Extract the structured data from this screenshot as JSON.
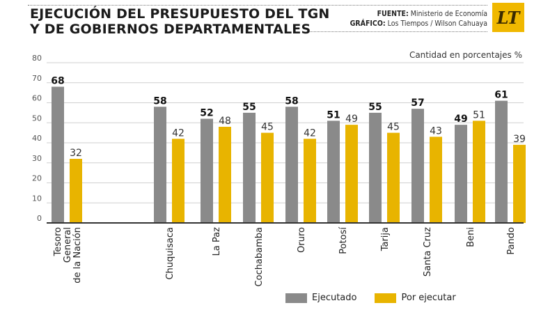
{
  "header": {
    "title_line1": "EJECUCIÓN DEL PRESUPUESTO DEL TGN",
    "title_line2": "Y DE GOBIERNOS DEPARTAMENTALES",
    "source_label": "FUENTE:",
    "source_value": "Ministerio de Economía",
    "graphic_label": "GRÁFICO:",
    "graphic_value": "Los Tiempos / Wilson Cahuaya",
    "logo_text": "LT"
  },
  "unit_note": "Cantidad en porcentajes %",
  "colors": {
    "ejecutado": "#8a8a8a",
    "por_ejecutar": "#e8b400",
    "grid": "#cfcfcf",
    "axis": "#333333"
  },
  "legend": [
    {
      "key": "ejecutado",
      "label": "Ejecutado"
    },
    {
      "key": "por_ejecutar",
      "label": "Por ejecutar"
    }
  ],
  "chart_data": {
    "type": "bar",
    "title": "EJECUCIÓN DEL PRESUPUESTO DEL TGN Y DE GOBIERNOS DEPARTAMENTALES",
    "xlabel": "",
    "ylabel": "Cantidad en porcentajes %",
    "ylim": [
      0,
      80
    ],
    "yticks": [
      0,
      10,
      20,
      30,
      40,
      50,
      60,
      70,
      80
    ],
    "grid": true,
    "legend_position": "bottom",
    "categories": [
      [
        "Tesoro",
        "General",
        "de la Nación"
      ],
      [
        "Chuquisaca"
      ],
      [
        "La Paz"
      ],
      [
        "Cochabamba"
      ],
      [
        "Oruro"
      ],
      [
        "Potosí"
      ],
      [
        "Tarija"
      ],
      [
        "Santa Cruz"
      ],
      [
        "Beni"
      ],
      [
        "Pando"
      ]
    ],
    "series": [
      {
        "name": "Ejecutado",
        "values": [
          68,
          58,
          52,
          55,
          58,
          51,
          55,
          57,
          49,
          61
        ]
      },
      {
        "name": "Por ejecutar",
        "values": [
          32,
          42,
          48,
          45,
          42,
          49,
          45,
          43,
          51,
          39
        ]
      }
    ]
  }
}
